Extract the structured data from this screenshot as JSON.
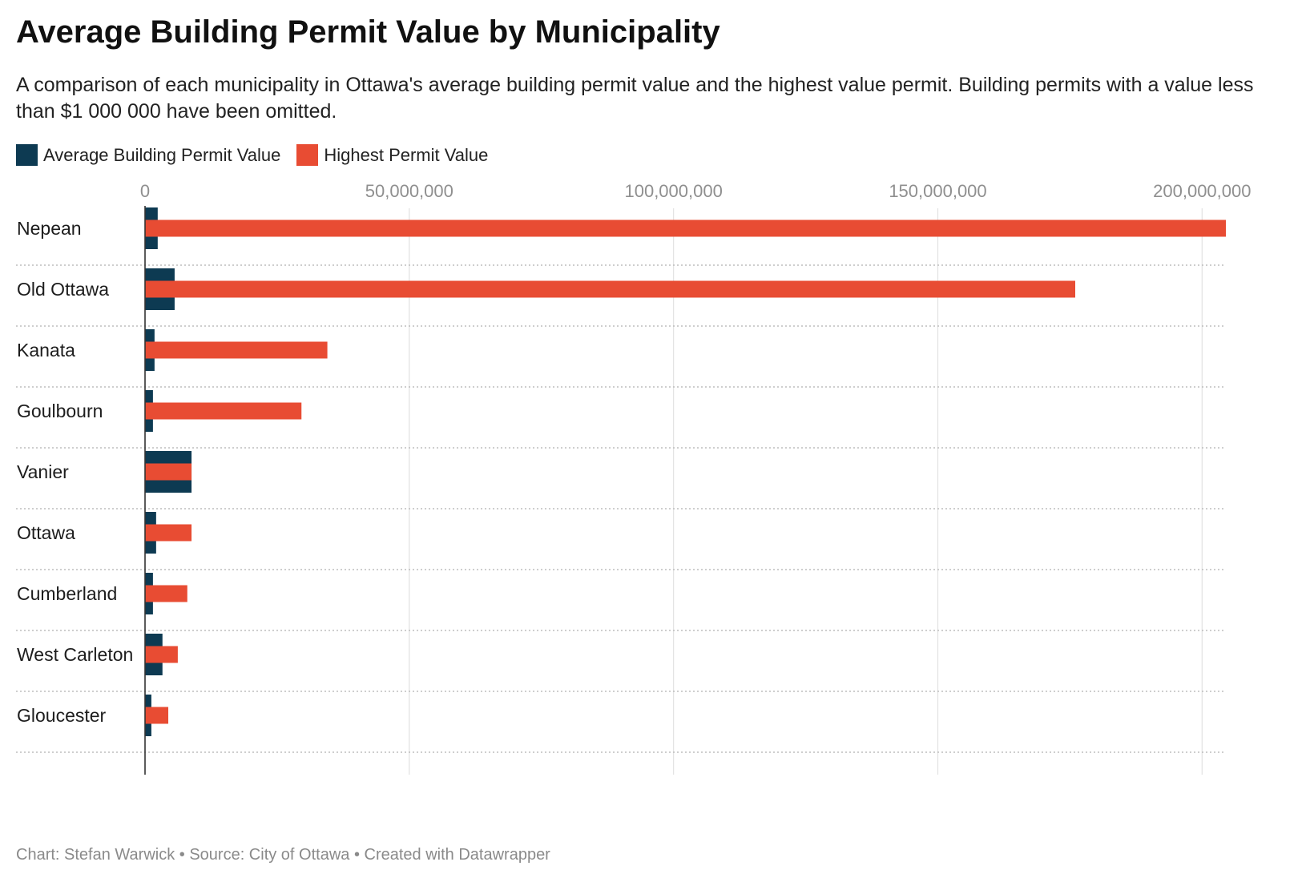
{
  "title": "Average Building Permit Value by Municipality",
  "subtitle": "A comparison of each municipality in Ottawa's average building permit value and the highest value permit. Building permits with a value less than $1 000 000 have been omitted.",
  "footer": "Chart: Stefan Warwick • Source: City of Ottawa • Created with Datawrapper",
  "legend": [
    {
      "label": "Average Building Permit Value",
      "color": "#0d3a52"
    },
    {
      "label": "Highest Permit Value",
      "color": "#e84c33"
    }
  ],
  "chart_data": {
    "type": "bar",
    "orientation": "horizontal",
    "categories": [
      "Nepean",
      "Old Ottawa",
      "Kanata",
      "Goulbourn",
      "Vanier",
      "Ottawa",
      "Cumberland",
      "West Carleton",
      "Gloucester"
    ],
    "series": [
      {
        "name": "Average Building Permit Value",
        "color": "#0d3a52",
        "values": [
          2400000,
          5600000,
          1800000,
          1500000,
          8800000,
          2100000,
          1500000,
          3300000,
          1200000
        ]
      },
      {
        "name": "Highest Permit Value",
        "color": "#e84c33",
        "values": [
          204500000,
          176000000,
          34500000,
          29600000,
          8800000,
          8800000,
          8000000,
          6200000,
          4400000
        ]
      }
    ],
    "xticks": [
      0,
      50000000,
      100000000,
      150000000,
      200000000
    ],
    "xtick_labels": [
      "0",
      "50,000,000",
      "100,000,000",
      "150,000,000",
      "200,000,000"
    ],
    "xlim": [
      0,
      204500000
    ],
    "grid": true,
    "legend_position": "top-left"
  }
}
